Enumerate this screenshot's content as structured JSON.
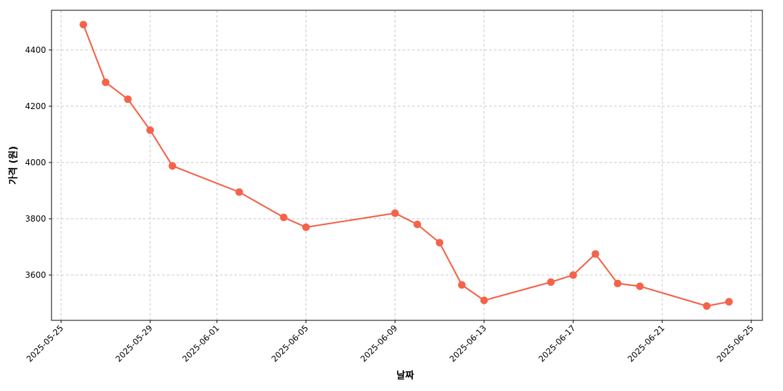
{
  "chart_data": {
    "type": "line",
    "xlabel": "날짜",
    "ylabel": "가격 (원)",
    "x": [
      "2025-05-26",
      "2025-05-27",
      "2025-05-28",
      "2025-05-29",
      "2025-05-30",
      "2025-06-02",
      "2025-06-04",
      "2025-06-05",
      "2025-06-09",
      "2025-06-10",
      "2025-06-11",
      "2025-06-12",
      "2025-06-13",
      "2025-06-16",
      "2025-06-17",
      "2025-06-18",
      "2025-06-19",
      "2025-06-20",
      "2025-06-23",
      "2025-06-24"
    ],
    "series": [
      {
        "color": "#f4634a",
        "values": [
          4490,
          4285,
          4225,
          4115,
          3988,
          3895,
          3805,
          3770,
          3820,
          3780,
          3715,
          3565,
          3510,
          3575,
          3600,
          3675,
          3570,
          3560,
          3490,
          3505
        ]
      }
    ],
    "xlim": [
      "2025-05-24T13:40:00Z",
      "2025-06-25T12:00:00Z"
    ],
    "xticks": [
      "2025-05-25",
      "2025-05-29",
      "2025-06-01",
      "2025-06-05",
      "2025-06-09",
      "2025-06-13",
      "2025-06-17",
      "2025-06-21",
      "2025-06-25"
    ],
    "ylim": [
      3439,
      4541
    ],
    "yticks": [
      3600,
      3800,
      4000,
      4200,
      4400
    ],
    "grid": true
  }
}
